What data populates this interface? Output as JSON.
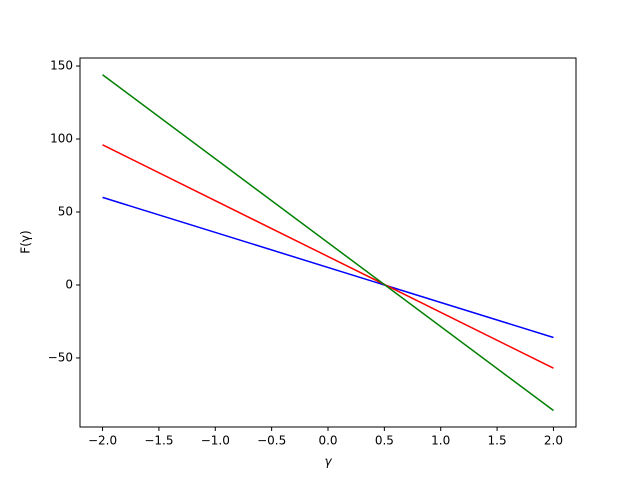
{
  "chart_data": {
    "type": "line",
    "xlabel": "γ",
    "ylabel": "F(γ)",
    "x": [
      -2,
      2
    ],
    "series": [
      {
        "color": "#0000ff",
        "values": [
          60,
          -36
        ]
      },
      {
        "color": "#ff0000",
        "values": [
          96,
          -57
        ]
      },
      {
        "color": "#008000",
        "values": [
          144,
          -86
        ]
      }
    ],
    "xlim": [
      -2.2,
      2.2
    ],
    "xticks": [
      {
        "value": -2,
        "label": "−2.0"
      },
      {
        "value": -1.5,
        "label": "−1.5"
      },
      {
        "value": -1,
        "label": "−1.0"
      },
      {
        "value": -0.5,
        "label": "−0.5"
      },
      {
        "value": 0,
        "label": "0.0"
      },
      {
        "value": 0.5,
        "label": "0.5"
      },
      {
        "value": 1,
        "label": "1.0"
      },
      {
        "value": 1.5,
        "label": "1.5"
      },
      {
        "value": 2,
        "label": "2.0"
      }
    ],
    "ylim": [
      -97.3,
      155.5
    ],
    "yticks": [
      {
        "value": -50,
        "label": "−50"
      },
      0,
      50,
      100,
      150
    ],
    "grid": false
  }
}
